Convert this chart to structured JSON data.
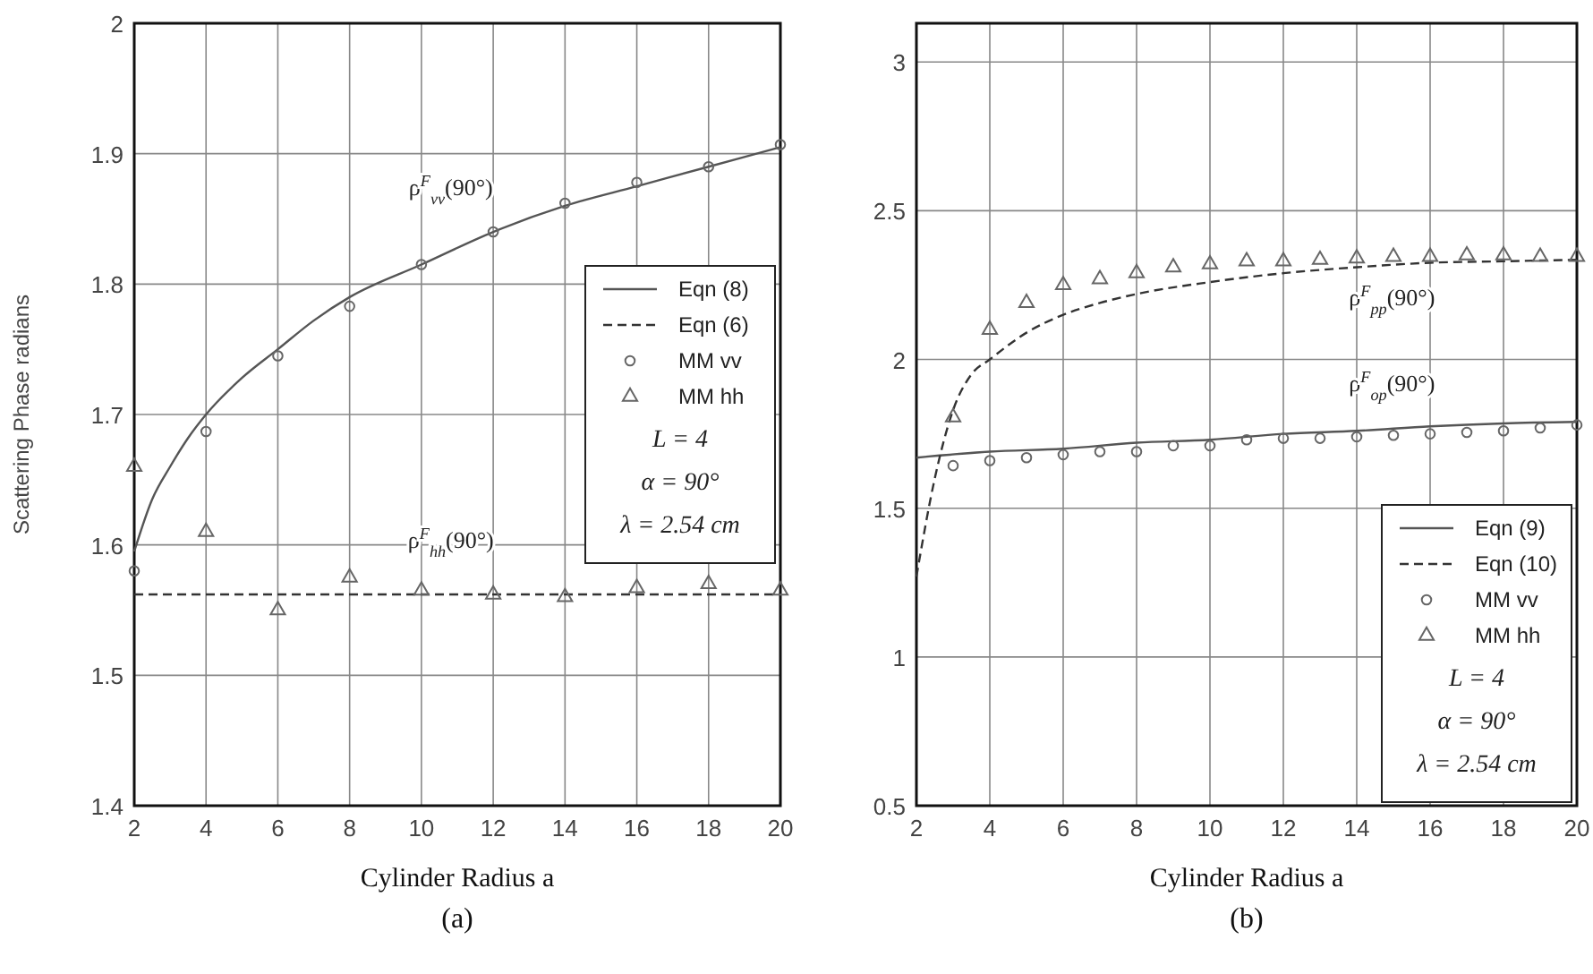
{
  "chart_data": [
    {
      "type": "line",
      "title": "(a)",
      "xlabel": "Cylinder Radius a",
      "ylabel": "Scattering Phase radians",
      "xlim": [
        2,
        20
      ],
      "xticks": [
        2,
        4,
        6,
        8,
        10,
        12,
        14,
        16,
        18,
        20
      ],
      "ylim": [
        1.4,
        2
      ],
      "yticks": [
        1.4,
        1.5,
        1.6,
        1.7,
        1.8,
        1.9,
        2
      ],
      "grid": true,
      "legend": "right",
      "annotations": [
        "ρ$^{F}$$_{vv}$(90°)",
        "ρ$^{F}$$_{hh}$(90°)",
        "L = 4",
        "α = 90°",
        "λ = 2.54 cm"
      ],
      "series": [
        {
          "name": "Eqn (8)",
          "line_style": "solid",
          "marker": "none",
          "color": "#555555",
          "x": [
            2,
            2.5,
            3,
            3.5,
            4,
            5,
            6,
            7,
            8,
            10,
            12,
            14,
            16,
            18,
            20
          ],
          "values": [
            1.595,
            1.635,
            1.66,
            1.682,
            1.7,
            1.728,
            1.75,
            1.772,
            1.79,
            1.815,
            1.84,
            1.86,
            1.875,
            1.89,
            1.905
          ]
        },
        {
          "name": "Eqn (6)",
          "line_style": "dashed",
          "marker": "none",
          "color": "#333333",
          "x": [
            2,
            20
          ],
          "values": [
            1.562,
            1.562
          ]
        },
        {
          "name": "MM vv",
          "type": "scatter",
          "marker": "circle",
          "color": "#666666",
          "x": [
            2,
            4,
            6,
            8,
            10,
            12,
            14,
            16,
            18,
            20
          ],
          "values": [
            1.58,
            1.687,
            1.745,
            1.783,
            1.815,
            1.84,
            1.862,
            1.878,
            1.89,
            1.907
          ]
        },
        {
          "name": "MM hh",
          "type": "scatter",
          "marker": "triangle",
          "color": "#666666",
          "x": [
            2,
            4,
            6,
            8,
            10,
            12,
            14,
            16,
            18,
            20
          ],
          "values": [
            1.66,
            1.61,
            1.55,
            1.575,
            1.565,
            1.562,
            1.56,
            1.567,
            1.57,
            1.565
          ]
        }
      ]
    },
    {
      "type": "line",
      "title": "(b)",
      "xlabel": "Cylinder Radius a",
      "xlim": [
        2,
        20
      ],
      "xticks": [
        2,
        4,
        6,
        8,
        10,
        12,
        14,
        16,
        18,
        20
      ],
      "ylim": [
        0.5,
        3.13
      ],
      "yticks": [
        0.5,
        1,
        1.5,
        2,
        2.5,
        3
      ],
      "grid": true,
      "legend": "bottom right",
      "annotations": [
        "ρ$^{F}$$_{pp}$(90°)",
        "ρ$^{F}$$_{op}$(90°)",
        "L = 4",
        "α = 90°",
        "λ = 2.54 cm"
      ],
      "series": [
        {
          "name": "Eqn (9)",
          "line_style": "solid",
          "marker": "none",
          "color": "#555555",
          "x": [
            2,
            4,
            6,
            8,
            10,
            12,
            14,
            16,
            18,
            20
          ],
          "values": [
            1.67,
            1.69,
            1.7,
            1.72,
            1.73,
            1.75,
            1.76,
            1.775,
            1.785,
            1.79
          ]
        },
        {
          "name": "Eqn (10)",
          "line_style": "dashed",
          "marker": "none",
          "color": "#333333",
          "x": [
            2,
            2.5,
            3,
            3.5,
            4,
            5,
            6,
            7,
            8,
            10,
            12,
            14,
            16,
            18,
            20
          ],
          "values": [
            1.27,
            1.6,
            1.83,
            1.95,
            2.0,
            2.09,
            2.15,
            2.19,
            2.22,
            2.26,
            2.29,
            2.31,
            2.325,
            2.33,
            2.335
          ]
        },
        {
          "name": "MM vv",
          "type": "scatter",
          "marker": "circle",
          "color": "#666666",
          "x": [
            3,
            4,
            5,
            6,
            7,
            8,
            9,
            10,
            11,
            12,
            13,
            14,
            15,
            16,
            17,
            18,
            19,
            20
          ],
          "values": [
            1.643,
            1.66,
            1.67,
            1.68,
            1.69,
            1.69,
            1.71,
            1.71,
            1.73,
            1.735,
            1.735,
            1.74,
            1.745,
            1.75,
            1.755,
            1.76,
            1.77,
            1.78
          ]
        },
        {
          "name": "MM hh",
          "type": "scatter",
          "marker": "triangle",
          "color": "#666666",
          "x": [
            3,
            4,
            5,
            6,
            7,
            8,
            9,
            10,
            11,
            12,
            13,
            14,
            15,
            16,
            17,
            18,
            19,
            20
          ],
          "values": [
            1.806,
            2.1,
            2.19,
            2.25,
            2.27,
            2.29,
            2.31,
            2.32,
            2.33,
            2.33,
            2.335,
            2.34,
            2.345,
            2.345,
            2.35,
            2.35,
            2.345,
            2.345
          ]
        }
      ]
    }
  ]
}
